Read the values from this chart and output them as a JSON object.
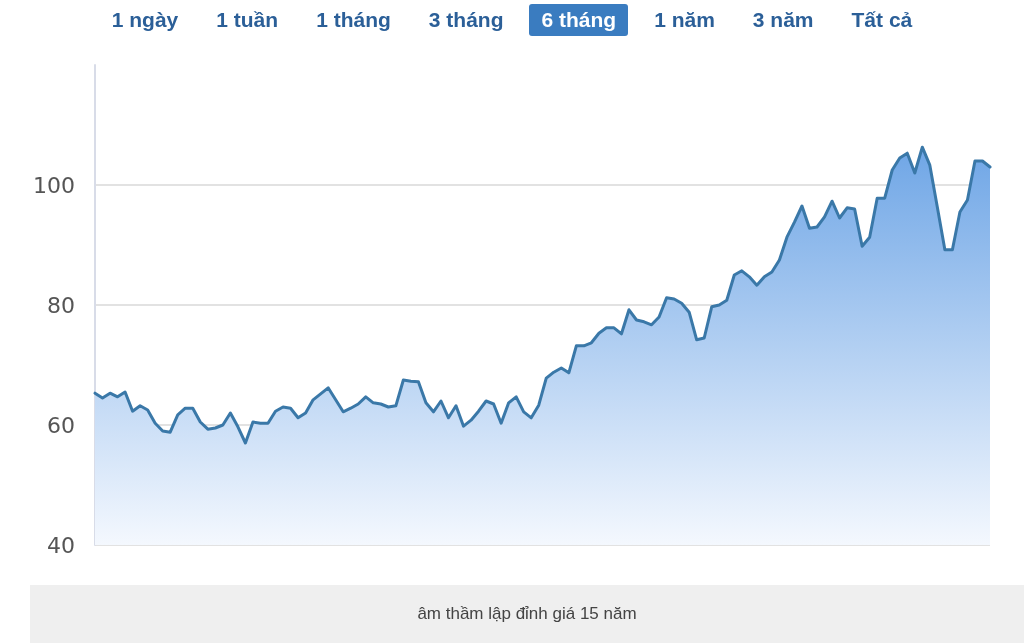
{
  "chart_data": {
    "type": "area",
    "annotations": [
      "1 ngày",
      "1 tuần",
      "1 tháng",
      "3 tháng",
      "6 tháng",
      "1 năm",
      "3 năm",
      "Tất cả",
      "âm thầm lập đỉnh giá 15 năm"
    ],
    "categories": [
      null,
      null,
      null,
      null,
      null,
      null,
      null,
      null,
      null,
      null,
      null,
      null,
      null,
      null,
      null,
      null,
      null,
      null,
      null,
      null,
      null,
      null,
      null,
      null,
      null,
      null,
      null,
      null,
      null,
      null,
      null,
      null,
      null,
      null,
      null,
      null,
      null,
      null,
      null,
      null,
      null,
      null,
      null,
      null,
      null,
      null,
      null,
      null,
      null,
      null,
      null,
      null,
      null,
      null,
      null,
      null,
      null,
      null,
      null,
      null,
      null,
      null,
      null,
      null,
      null,
      null,
      null,
      null,
      null,
      null,
      null,
      null,
      null,
      null,
      null,
      null,
      null,
      null,
      null,
      null,
      null,
      null,
      null,
      null,
      null,
      null,
      null,
      null,
      null,
      null,
      null,
      null,
      null,
      null,
      null,
      null,
      null,
      null,
      null,
      null,
      null,
      null,
      null,
      null,
      null,
      null,
      null,
      null,
      null,
      null,
      null,
      null,
      null,
      null,
      null,
      null,
      null,
      null,
      null,
      null
    ],
    "series": [
      {
        "color": "#3a78a8",
        "values": [
          65.3,
          64.5,
          65.3,
          64.7,
          65.5,
          62.3,
          63.2,
          62.5,
          60.3,
          59,
          58.8,
          61.7,
          62.8,
          62.8,
          60.5,
          59.3,
          59.5,
          60,
          62,
          59.7,
          57,
          60.5,
          60.3,
          60.3,
          62.3,
          63,
          62.8,
          61.2,
          62,
          64.2,
          65.2,
          66.2,
          64.2,
          62.2,
          62.8,
          63.5,
          64.7,
          63.7,
          63.5,
          63,
          63.2,
          67.5,
          67.3,
          67.2,
          63.7,
          62.2,
          64,
          61.2,
          63.2,
          59.8,
          60.8,
          62.3,
          64,
          63.5,
          60.3,
          63.7,
          64.7,
          62.2,
          61.2,
          63.3,
          67.8,
          68.8,
          69.5,
          68.7,
          73.2,
          73.2,
          73.7,
          75.3,
          76.2,
          76.2,
          75.2,
          79.2,
          77.5,
          77.2,
          76.7,
          78,
          81.2,
          81,
          80.3,
          78.8,
          74.2,
          74.5,
          79.7,
          80,
          80.8,
          85,
          85.7,
          84.7,
          83.3,
          84.7,
          85.5,
          87.5,
          91.3,
          93.8,
          96.5,
          92.8,
          93,
          94.7,
          97.3,
          94.5,
          96.2,
          96,
          89.8,
          91.3,
          97.8,
          97.8,
          102.5,
          104.5,
          105.3,
          102,
          106.3,
          103.3,
          96.3,
          89.2,
          89.2,
          95.5,
          97.5,
          104,
          104,
          103
        ]
      }
    ],
    "ylim": [
      40,
      120
    ],
    "yticks": [
      40,
      60,
      80,
      100
    ],
    "grid": "y",
    "line_style": "solid",
    "tick_labels": "y"
  }
}
